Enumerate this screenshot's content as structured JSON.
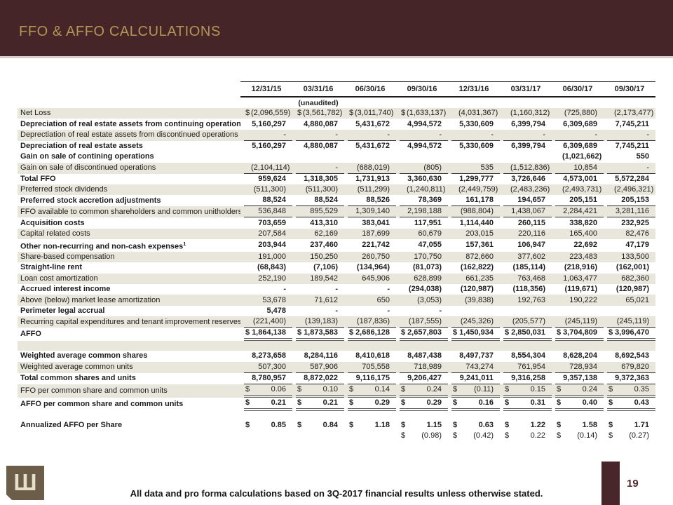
{
  "slide": {
    "title": "FFO & AFFO CALCULATIONS",
    "footer_note": "All data and pro forma calculations based on 3Q-2017 financial results unless otherwise stated.",
    "page_number": "19",
    "logo_glyph": "Ш"
  },
  "colors": {
    "header_maroon": "#452528",
    "title_gold": "#b29656",
    "row_shade": "#e9e6db",
    "rule_dark": "#1c1c1c",
    "rule_gray": "#5e5e5e",
    "logo_brown": "#6c5d49",
    "logo_cream": "#e7e0c9",
    "page_bar_maroon": "#48262a"
  },
  "table": {
    "columns": [
      "12/31/15",
      "03/31/16",
      "06/30/16",
      "09/30/16",
      "12/31/16",
      "03/31/17",
      "06/30/17",
      "09/30/17"
    ],
    "subheader": "(unaudited)",
    "rows": [
      {
        "label": "Net Loss",
        "shaded": true,
        "bold": false,
        "rule": "none",
        "values": [
          "$ (2,096,559)",
          "$ (3,561,782)",
          "$ (3,011,740)",
          "$ (1,633,137)",
          "(4,031,367)",
          "(1,160,312)",
          "(725,880)",
          "(2,173,477)"
        ]
      },
      {
        "label": "Depreciation of real estate assets from continuing operations",
        "shaded": false,
        "bold": true,
        "rule": "none",
        "values": [
          "5,160,297",
          "4,880,087",
          "5,431,672",
          "4,994,572",
          "5,330,609",
          "6,399,794",
          "6,309,689",
          "7,745,211"
        ]
      },
      {
        "label": "Deprectiation of real estate assets from discontinued operations",
        "shaded": true,
        "bold": false,
        "rule": "single",
        "values": [
          "-",
          "-",
          "-",
          "-",
          "-",
          "-",
          "-",
          "-"
        ]
      },
      {
        "label": "Depreciation of real estate assets",
        "shaded": false,
        "bold": true,
        "rule": "none",
        "values": [
          "5,160,297",
          "4,880,087",
          "5,431,672",
          "4,994,572",
          "5,330,609",
          "6,399,794",
          "6,309,689",
          "7,745,211"
        ]
      },
      {
        "label": "Gain on sale of contining operations",
        "shaded": false,
        "bold": true,
        "rule": "none",
        "values": [
          "",
          "",
          "",
          "",
          "",
          "",
          "(1,021,662)",
          "550"
        ]
      },
      {
        "label": "Gain on sale of discontinued operations",
        "shaded": true,
        "bold": false,
        "rule": "single",
        "values": [
          "(2,104,114)",
          "-",
          "(688,019)",
          "(805)",
          "535",
          "(1,512,836)",
          "10,854",
          "-"
        ]
      },
      {
        "label": "Total FFO",
        "shaded": false,
        "bold": true,
        "rule": "none",
        "values": [
          "959,624",
          "1,318,305",
          "1,731,913",
          "3,360,630",
          "1,299,777",
          "3,726,646",
          "4,573,001",
          "5,572,284"
        ]
      },
      {
        "label": "Preferred stock dividends",
        "shaded": true,
        "bold": false,
        "rule": "none",
        "values": [
          "(511,300)",
          "(511,300)",
          "(511,299)",
          "(1,240,811)",
          "(2,449,759)",
          "(2,483,236)",
          "(2,493,731)",
          "(2,496,321)"
        ]
      },
      {
        "label": "Preferred stock accretion adjustments",
        "shaded": false,
        "bold": true,
        "rule": "single",
        "values": [
          "88,524",
          "88,524",
          "88,526",
          "78,369",
          "161,178",
          "194,657",
          "205,151",
          "205,153"
        ]
      },
      {
        "label": "FFO available to common shareholders and common unitholders",
        "shaded": true,
        "bold": false,
        "rule": "single",
        "values": [
          "536,848",
          "895,529",
          "1,309,140",
          "2,198,188",
          "(988,804)",
          "1,438,067",
          "2,284,421",
          "3,281,116"
        ]
      },
      {
        "label": "Acquisition costs",
        "shaded": false,
        "bold": true,
        "rule": "none",
        "values": [
          "703,659",
          "413,310",
          "383,041",
          "117,951",
          "1,114,440",
          "260,115",
          "338,820",
          "232,925"
        ]
      },
      {
        "label": "Capital related costs",
        "shaded": true,
        "bold": false,
        "rule": "none",
        "values": [
          "207,584",
          "62,169",
          "187,699",
          "60,679",
          "203,015",
          "220,116",
          "165,400",
          "82,476"
        ]
      },
      {
        "label": "Other non-recurring and non-cash expenses",
        "sup": "1",
        "shaded": false,
        "bold": true,
        "rule": "none",
        "values": [
          "203,944",
          "237,460",
          "221,742",
          "47,055",
          "157,361",
          "106,947",
          "22,692",
          "47,179"
        ]
      },
      {
        "label": "Share-based compensation",
        "shaded": true,
        "bold": false,
        "rule": "none",
        "values": [
          "191,000",
          "150,250",
          "260,750",
          "170,750",
          "872,660",
          "377,602",
          "223,483",
          "133,500"
        ]
      },
      {
        "label": "Straight-line rent",
        "shaded": false,
        "bold": true,
        "rule": "none",
        "values": [
          "(68,843)",
          "(7,106)",
          "(134,964)",
          "(81,073)",
          "(162,822)",
          "(185,114)",
          "(218,916)",
          "(162,001)"
        ]
      },
      {
        "label": "Loan cost amortization",
        "shaded": true,
        "bold": false,
        "rule": "none",
        "values": [
          "252,190",
          "189,542",
          "645,906",
          "628,899",
          "661,235",
          "763,468",
          "1,063,477",
          "682,360"
        ]
      },
      {
        "label": "Accrued interest income",
        "shaded": false,
        "bold": true,
        "rule": "none",
        "values": [
          "-",
          "-",
          "-",
          "(294,038)",
          "(120,987)",
          "(118,356)",
          "(119,671)",
          "(120,987)"
        ]
      },
      {
        "label": "Above (below) market lease amortization",
        "shaded": true,
        "bold": false,
        "rule": "none",
        "values": [
          "53,678",
          "71,612",
          "650",
          "(3,053)",
          "(39,838)",
          "192,763",
          "190,222",
          "65,021"
        ]
      },
      {
        "label": "Perimeter legal accrual",
        "shaded": false,
        "bold": true,
        "rule": "none",
        "values": [
          "5,478",
          "-",
          "-",
          "-",
          "",
          "",
          "",
          ""
        ]
      },
      {
        "label": "Recurring capital expenditures and tenant improvement reserves",
        "shaded": true,
        "bold": false,
        "rule": "single",
        "values": [
          "(221,400)",
          "(139,183)",
          "(187,836)",
          "(187,555)",
          "(245,326)",
          "(205,577)",
          "(245,119)",
          "(245,119)"
        ]
      },
      {
        "label": "AFFO",
        "shaded": false,
        "bold": true,
        "rule": "double",
        "values": [
          "$ 1,864,138",
          "$ 1,873,583",
          "$ 2,686,128",
          "$ 2,657,803",
          "$ 1,450,934",
          "$ 2,850,031",
          "$ 3,704,809",
          "$ 3,996,470"
        ]
      },
      {
        "label": "",
        "shaded": true,
        "bold": false,
        "rule": "none",
        "blank": "14",
        "values": [
          "",
          "",
          "",
          "",
          "",
          "",
          "",
          ""
        ]
      },
      {
        "label": "Weighted average common shares",
        "shaded": false,
        "bold": true,
        "rule": "none",
        "values": [
          "8,273,658",
          "8,284,116",
          "8,410,618",
          "8,487,438",
          "8,497,737",
          "8,554,304",
          "8,628,204",
          "8,692,543"
        ]
      },
      {
        "label": "Weighted average common units",
        "shaded": true,
        "bold": false,
        "rule": "single",
        "values": [
          "507,300",
          "587,906",
          "705,558",
          "718,989",
          "743,274",
          "761,954",
          "728,934",
          "679,820"
        ]
      },
      {
        "label": "Total common shares and units",
        "shaded": false,
        "bold": true,
        "rule": "single",
        "values": [
          "8,780,957",
          "8,872,022",
          "9,116,175",
          "9,206,427",
          "9,241,011",
          "9,316,258",
          "9,357,138",
          "9,372,363"
        ]
      },
      {
        "label": "FFO per common share and common units",
        "shaded": true,
        "bold": false,
        "rule": "double",
        "values": [
          "$ 0.06",
          "$ 0.10",
          "$ 0.14",
          "$ 0.24",
          "$ (0.11)",
          "$ 0.15",
          "$ 0.24",
          "$ 0.35"
        ]
      },
      {
        "label": "AFFO per common share and common units",
        "shaded": false,
        "bold": true,
        "rule": "double",
        "values": [
          "$ 0.21",
          "$ 0.21",
          "$ 0.29",
          "$ 0.29",
          "$ 0.16",
          "$ 0.31",
          "$ 0.40",
          "$ 0.43"
        ]
      },
      {
        "label": "",
        "shaded": false,
        "bold": false,
        "rule": "none",
        "blank": "13",
        "values": [
          "",
          "",
          "",
          "",
          "",
          "",
          "",
          ""
        ]
      },
      {
        "label": "Annualized AFFO per Share",
        "shaded": false,
        "bold": true,
        "rule": "none",
        "values": [
          "$ 0.85",
          "$ 0.84",
          "$ 1.18",
          "$ 1.15",
          "$ 0.63",
          "$ 1.22",
          "$ 1.58",
          "$ 1.71"
        ]
      },
      {
        "label": "",
        "shaded": false,
        "bold": false,
        "rule": "none",
        "values": [
          "",
          "",
          "",
          "$ (0.98)",
          "$ (0.42)",
          "$ 0.22",
          "$ (0.14)",
          "$ (0.27)"
        ]
      }
    ]
  }
}
